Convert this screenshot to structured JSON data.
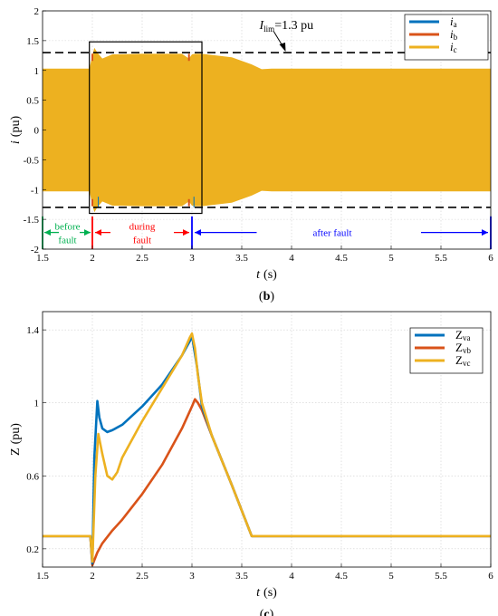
{
  "chart_data": [
    {
      "type": "line",
      "panel_label": "b",
      "xlabel": "t",
      "xunit": "(s)",
      "ylabel": "i",
      "yunit": "(pu)",
      "xlim": [
        1.5,
        6
      ],
      "ylim": [
        -2,
        2
      ],
      "xticks": [
        1.5,
        2,
        2.5,
        3,
        3.5,
        4,
        4.5,
        5,
        5.5,
        6
      ],
      "xtick_labels": [
        "1.5",
        "2",
        "2.5",
        "3",
        "3.5",
        "4",
        "4.5",
        "5",
        "5.5",
        "6"
      ],
      "yticks": [
        -2,
        -1.5,
        -1,
        -0.5,
        0,
        0.5,
        1,
        1.5,
        2
      ],
      "ytick_labels": [
        "-2",
        "-1.5",
        "-1",
        "-0.5",
        "0",
        "0.5",
        "1",
        "1.5",
        "2"
      ],
      "grid": true,
      "legend_position": "top-right",
      "series": [
        {
          "name": "i",
          "subscript": "a",
          "color": "#0072BD"
        },
        {
          "name": "i",
          "subscript": "b",
          "color": "#D95319"
        },
        {
          "name": "i",
          "subscript": "c",
          "color": "#EDB120"
        }
      ],
      "envelope": {
        "description_points_x": [
          1.5,
          1.97,
          2.0,
          2.02,
          2.05,
          2.1,
          2.2,
          2.5,
          2.9,
          2.97,
          3.0,
          3.03,
          3.1,
          3.4,
          3.6,
          3.7,
          3.8,
          4.5,
          6.0
        ],
        "upper": [
          1.03,
          1.03,
          1.25,
          1.38,
          1.3,
          1.2,
          1.27,
          1.28,
          1.28,
          1.2,
          1.27,
          1.28,
          1.28,
          1.22,
          1.1,
          1.02,
          1.03,
          1.03,
          1.03
        ],
        "lower": [
          -1.03,
          -1.03,
          -1.25,
          -1.38,
          -1.3,
          -1.2,
          -1.27,
          -1.28,
          -1.28,
          -1.2,
          -1.27,
          -1.28,
          -1.28,
          -1.22,
          -1.1,
          -1.02,
          -1.03,
          -1.03,
          -1.03
        ]
      },
      "limit_lines": [
        1.3,
        -1.3
      ],
      "limit_annotation": {
        "main": "I",
        "sub": "lim",
        "rest": "=1.3 pu",
        "arrow_to": [
          3.95,
          1.3
        ]
      },
      "highlight_box": {
        "x": [
          1.97,
          3.1
        ],
        "y": [
          -1.4,
          1.48
        ]
      },
      "phase_markers": [
        1.5,
        2.0,
        3.0,
        6.0
      ],
      "phases": [
        {
          "lines": [
            "before",
            "fault"
          ],
          "color": "#00B050",
          "x": [
            1.5,
            2.0
          ]
        },
        {
          "lines": [
            "during",
            "fault"
          ],
          "color": "#FF0000",
          "x": [
            2.0,
            3.0
          ]
        },
        {
          "lines": [
            "after fault"
          ],
          "color": "#0000FF",
          "x": [
            3.0,
            6.0
          ]
        }
      ]
    },
    {
      "type": "line",
      "panel_label": "c",
      "xlabel": "t",
      "xunit": "(s)",
      "ylabel": "Z",
      "yunit": "(pu)",
      "xlim": [
        1.5,
        6
      ],
      "ylim": [
        0.1,
        1.5
      ],
      "xticks": [
        1.5,
        2,
        2.5,
        3,
        3.5,
        4,
        4.5,
        5,
        5.5,
        6
      ],
      "xtick_labels": [
        "1.5",
        "2",
        "2.5",
        "3",
        "3.5",
        "4",
        "4.5",
        "5",
        "5.5",
        "6"
      ],
      "yticks": [
        0.2,
        0.6,
        1,
        1.4
      ],
      "ytick_labels": [
        "0.2",
        "0.6",
        "1",
        "1.4"
      ],
      "grid": true,
      "legend_position": "top-right",
      "series": [
        {
          "name": "Z",
          "subscript": "va",
          "color": "#0072BD",
          "x": [
            1.5,
            1.98,
            2.0,
            2.02,
            2.05,
            2.07,
            2.1,
            2.15,
            2.2,
            2.3,
            2.5,
            2.7,
            2.9,
            2.98,
            3.0,
            3.05,
            3.1,
            3.2,
            3.4,
            3.6,
            6.0
          ],
          "y": [
            0.27,
            0.27,
            0.12,
            0.7,
            1.01,
            0.92,
            0.86,
            0.84,
            0.85,
            0.88,
            0.98,
            1.1,
            1.26,
            1.34,
            1.37,
            1.2,
            0.98,
            0.82,
            0.55,
            0.27,
            0.27
          ]
        },
        {
          "name": "Z",
          "subscript": "vb",
          "color": "#D95319",
          "x": [
            1.5,
            1.98,
            2.0,
            2.05,
            2.1,
            2.2,
            2.3,
            2.5,
            2.7,
            2.9,
            3.0,
            3.03,
            3.06,
            3.1,
            3.2,
            3.4,
            3.6,
            6.0
          ],
          "y": [
            0.27,
            0.27,
            0.11,
            0.18,
            0.23,
            0.3,
            0.36,
            0.5,
            0.66,
            0.86,
            0.98,
            1.02,
            1.0,
            0.96,
            0.82,
            0.55,
            0.27,
            0.27
          ]
        },
        {
          "name": "Z",
          "subscript": "vc",
          "color": "#EDB120",
          "x": [
            1.5,
            1.98,
            2.0,
            2.03,
            2.06,
            2.1,
            2.15,
            2.2,
            2.25,
            2.3,
            2.5,
            2.7,
            2.9,
            2.98,
            3.0,
            3.03,
            3.06,
            3.1,
            3.2,
            3.4,
            3.6,
            6.0
          ],
          "y": [
            0.27,
            0.27,
            0.13,
            0.6,
            0.83,
            0.72,
            0.6,
            0.58,
            0.62,
            0.7,
            0.9,
            1.08,
            1.26,
            1.36,
            1.38,
            1.3,
            1.15,
            1.0,
            0.82,
            0.55,
            0.27,
            0.27
          ]
        }
      ]
    }
  ]
}
